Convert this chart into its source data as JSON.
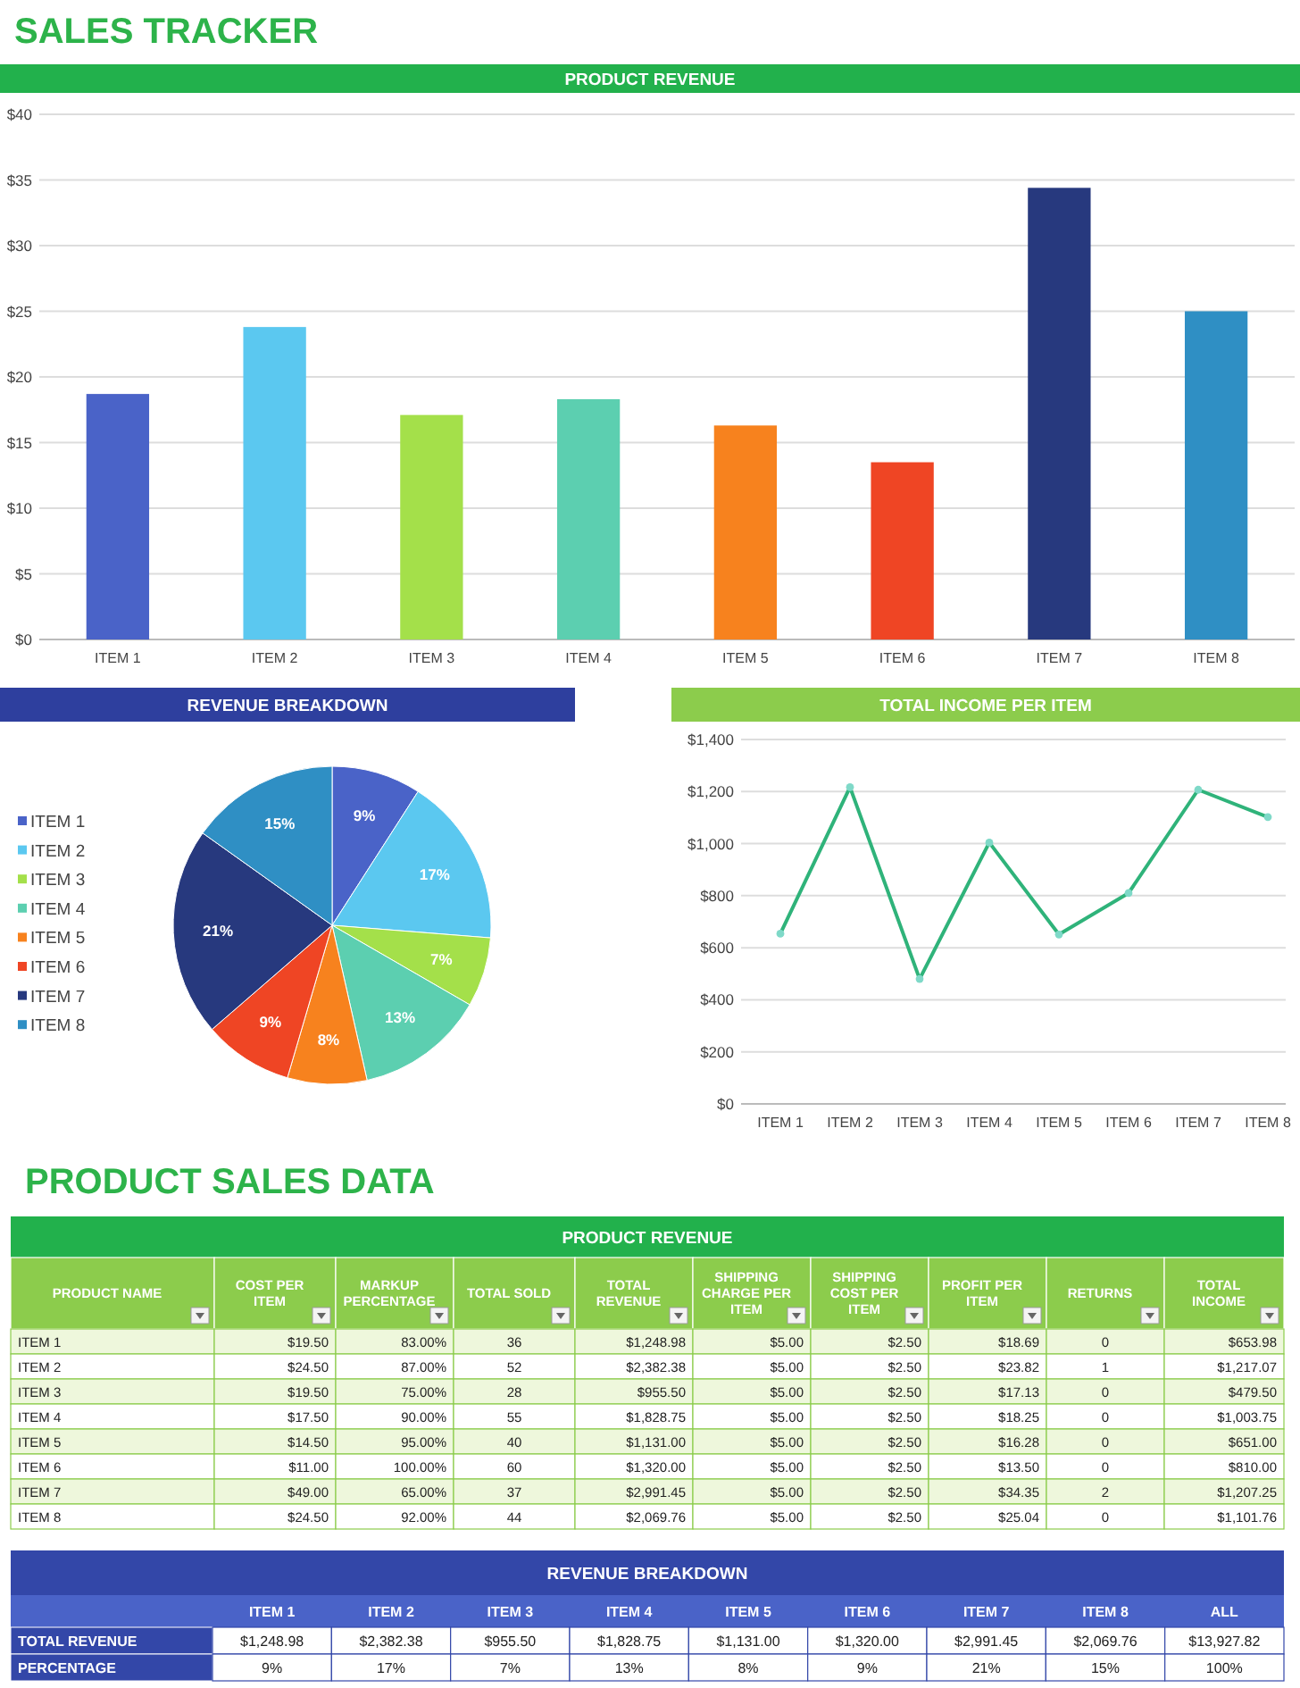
{
  "chart_data": [
    {
      "type": "bar",
      "title": "SALES TRACKER",
      "subtitle": "PRODUCT REVENUE",
      "categories": [
        "ITEM 1",
        "ITEM 2",
        "ITEM 3",
        "ITEM 4",
        "ITEM 5",
        "ITEM 6",
        "ITEM 7",
        "ITEM 8"
      ],
      "values": [
        18.7,
        23.8,
        17.1,
        18.3,
        16.3,
        13.5,
        34.4,
        25
      ],
      "colors": [
        "#4a63c8",
        "#5bc8f0",
        "#a4e04a",
        "#5ccfb0",
        "#f7821e",
        "#ef4524",
        "#27397e",
        "#2f8fc4"
      ],
      "ylim": [
        0,
        40
      ],
      "yticks": [
        {
          "value": 0,
          "label": "$0"
        },
        {
          "value": 5,
          "label": "$5"
        },
        {
          "value": 10,
          "label": "$10"
        },
        {
          "value": 15,
          "label": "$15"
        },
        {
          "value": 20,
          "label": "$20"
        },
        {
          "value": 25,
          "label": "$25"
        },
        {
          "value": 30,
          "label": "$30"
        },
        {
          "value": 35,
          "label": "$35"
        },
        {
          "value": 40,
          "label": "$40"
        }
      ],
      "grid": "y"
    },
    {
      "type": "pie",
      "title": "REVENUE BREAKDOWN",
      "categories": [
        "ITEM 1",
        "ITEM 2",
        "ITEM 3",
        "ITEM 4",
        "ITEM 5",
        "ITEM 6",
        "ITEM 7",
        "ITEM 8"
      ],
      "values": [
        9,
        17,
        7,
        13,
        8,
        9,
        21,
        15
      ],
      "value_labels": [
        "9%",
        "17%",
        "7%",
        "13%",
        "8%",
        "9%",
        "21%",
        "15%"
      ],
      "colors": [
        "#4a63c8",
        "#5bc8f0",
        "#a4e04a",
        "#5ccfb0",
        "#f7821e",
        "#ef4524",
        "#27397e",
        "#2f8fc4"
      ],
      "legend": "left"
    },
    {
      "type": "line",
      "title": "TOTAL INCOME PER ITEM",
      "categories": [
        "ITEM 1",
        "ITEM 2",
        "ITEM 3",
        "ITEM 4",
        "ITEM 5",
        "ITEM 6",
        "ITEM 7",
        "ITEM 8"
      ],
      "values": [
        654,
        1217,
        480,
        1004,
        651,
        810,
        1207,
        1102
      ],
      "color": "#2fb37a",
      "marker": "circle",
      "ylim": [
        0,
        1400
      ],
      "yticks": [
        {
          "value": 0,
          "label": "$0"
        },
        {
          "value": 200,
          "label": "$200"
        },
        {
          "value": 400,
          "label": "$400"
        },
        {
          "value": 600,
          "label": "$600"
        },
        {
          "value": 800,
          "label": "$800"
        },
        {
          "value": 1000,
          "label": "$1,000"
        },
        {
          "value": 1200,
          "label": "$1,200"
        },
        {
          "value": 1400,
          "label": "$1,400"
        }
      ],
      "grid": "y"
    },
    {
      "type": "other",
      "title": "PRODUCT SALES DATA",
      "subtitle": "PRODUCT REVENUE",
      "categories": [
        "PRODUCT NAME",
        "COST PER ITEM",
        "MARKUP PERCENTAGE",
        "TOTAL SOLD",
        "TOTAL REVENUE",
        "SHIPPING CHARGE PER ITEM",
        "SHIPPING COST PER ITEM",
        "PROFIT PER ITEM",
        "RETURNS",
        "TOTAL INCOME"
      ],
      "cell_labels": [
        [
          "ITEM 1",
          "$19.50",
          "83.00%",
          "36",
          "$1,248.98",
          "$5.00",
          "$2.50",
          "$18.69",
          "0",
          "$653.98"
        ],
        [
          "ITEM 2",
          "$24.50",
          "87.00%",
          "52",
          "$2,382.38",
          "$5.00",
          "$2.50",
          "$23.82",
          "1",
          "$1,217.07"
        ],
        [
          "ITEM 3",
          "$19.50",
          "75.00%",
          "28",
          "$955.50",
          "$5.00",
          "$2.50",
          "$17.13",
          "0",
          "$479.50"
        ],
        [
          "ITEM 4",
          "$17.50",
          "90.00%",
          "55",
          "$1,828.75",
          "$5.00",
          "$2.50",
          "$18.25",
          "0",
          "$1,003.75"
        ],
        [
          "ITEM 5",
          "$14.50",
          "95.00%",
          "40",
          "$1,131.00",
          "$5.00",
          "$2.50",
          "$16.28",
          "0",
          "$651.00"
        ],
        [
          "ITEM 6",
          "$11.00",
          "100.00%",
          "60",
          "$1,320.00",
          "$5.00",
          "$2.50",
          "$13.50",
          "0",
          "$810.00"
        ],
        [
          "ITEM 7",
          "$49.00",
          "65.00%",
          "37",
          "$2,991.45",
          "$5.00",
          "$2.50",
          "$34.35",
          "2",
          "$1,207.25"
        ],
        [
          "ITEM 8",
          "$24.50",
          "92.00%",
          "44",
          "$2,069.76",
          "$5.00",
          "$2.50",
          "$25.04",
          "0",
          "$1,101.76"
        ]
      ]
    },
    {
      "type": "other",
      "title": "REVENUE BREAKDOWN",
      "categories": [
        "ITEM 1",
        "ITEM 2",
        "ITEM 3",
        "ITEM 4",
        "ITEM 5",
        "ITEM 6",
        "ITEM 7",
        "ITEM 8",
        "ALL"
      ],
      "y_categories": [
        "TOTAL REVENUE",
        "PERCENTAGE"
      ],
      "cell_labels": [
        [
          "$1,248.98",
          "$2,382.38",
          "$955.50",
          "$1,828.75",
          "$1,131.00",
          "$1,320.00",
          "$2,991.45",
          "$2,069.76",
          "$13,927.82"
        ],
        [
          "9%",
          "17%",
          "7%",
          "13%",
          "8%",
          "9%",
          "21%",
          "15%",
          "100%"
        ]
      ]
    }
  ]
}
